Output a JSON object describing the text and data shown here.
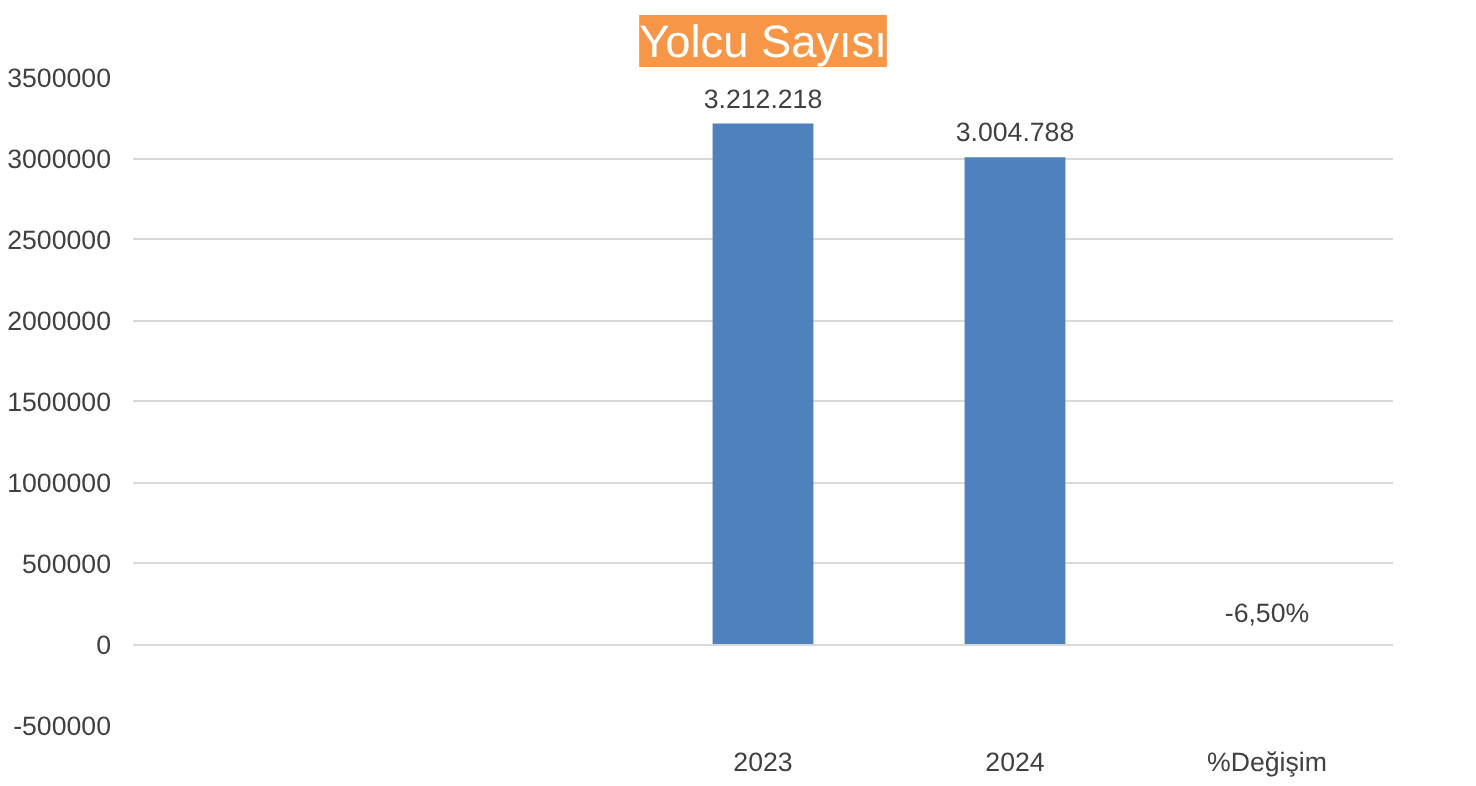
{
  "chart_data": {
    "type": "bar",
    "title": "Yolcu Sayısı",
    "categories": [
      null,
      null,
      "2023",
      "2024",
      "%Değişim"
    ],
    "values": [
      null,
      null,
      3212218,
      3004788,
      -6.5
    ],
    "value_labels": [
      null,
      null,
      "3.212.218",
      "3.004.788",
      "-6,50%"
    ],
    "color": "#4f81bd",
    "ylim": [
      -500000,
      3500000
    ],
    "yticks": [
      -500000,
      0,
      500000,
      1000000,
      1500000,
      2000000,
      2500000,
      3000000,
      3500000
    ],
    "grid": "y"
  }
}
